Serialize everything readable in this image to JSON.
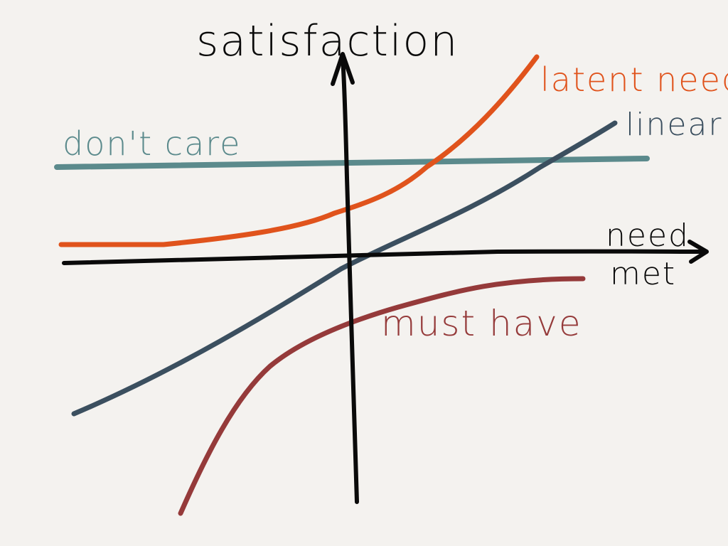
{
  "axes": {
    "y_label": "satisfaction",
    "x_label_line1": "need",
    "x_label_line2": "met"
  },
  "curves": {
    "latent_need": {
      "label": "latent need",
      "color": "#e0531c"
    },
    "linear": {
      "label": "linear",
      "color": "#3b4f5f"
    },
    "dont_care": {
      "label": "don't care",
      "color": "#5b8a8c"
    },
    "must_have": {
      "label": "must have",
      "color": "#953a3a"
    },
    "axis_color": "#0a0a0a"
  }
}
